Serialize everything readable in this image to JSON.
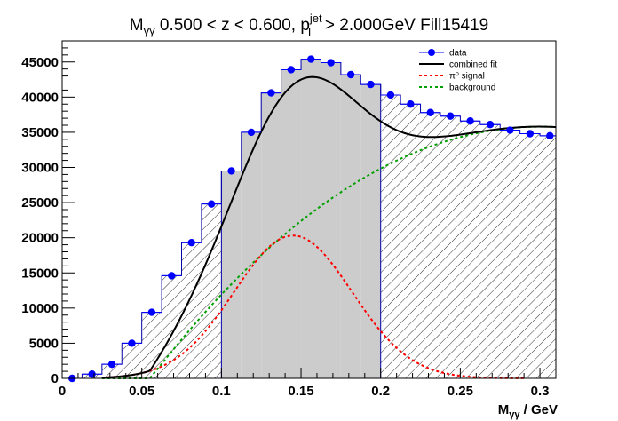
{
  "chart_data": {
    "type": "histogram-fit",
    "title": {
      "parts": [
        "M",
        "γγ",
        " 0.500 < z < 0.600, p",
        "jet",
        "T",
        " > 2.000GeV Fill15419"
      ]
    },
    "xlabel": {
      "main": "M",
      "sub": "γγ",
      "rest": " / GeV"
    },
    "ylabel": "",
    "xlim": [
      0,
      0.31
    ],
    "ylim": [
      0,
      48000
    ],
    "xticks": [
      0,
      0.05,
      0.1,
      0.15,
      0.2,
      0.25,
      0.3
    ],
    "xtick_labels": [
      "0",
      "0.05",
      "0.1",
      "0.15",
      "0.2",
      "0.25",
      "0.3"
    ],
    "yticks": [
      0,
      5000,
      10000,
      15000,
      20000,
      25000,
      30000,
      35000,
      40000,
      45000
    ],
    "ytick_labels": [
      "0",
      "5000",
      "10000",
      "15000",
      "20000",
      "25000",
      "30000",
      "35000",
      "40000",
      "45000"
    ],
    "signal_region": [
      0.1,
      0.2
    ],
    "bin_width": 0.0125,
    "bin_centers": [
      0.00625,
      0.01875,
      0.03125,
      0.04375,
      0.05625,
      0.06875,
      0.08125,
      0.09375,
      0.10625,
      0.11875,
      0.13125,
      0.14375,
      0.15625,
      0.16875,
      0.18125,
      0.19375,
      0.20625,
      0.21875,
      0.23125,
      0.24375,
      0.25625,
      0.26875,
      0.28125,
      0.29375,
      0.30625
    ],
    "data_values": [
      0,
      600,
      2000,
      5000,
      9400,
      14600,
      19300,
      24800,
      29500,
      35000,
      40600,
      43900,
      45400,
      44900,
      43200,
      41800,
      40300,
      39000,
      37800,
      37300,
      36600,
      36100,
      35300,
      34800,
      34500
    ],
    "legend": {
      "position": "top-right",
      "entries": [
        {
          "label": "data",
          "color": "#0000ff",
          "style": "marker"
        },
        {
          "label": "combined fit",
          "color": "#000000",
          "style": "solid"
        },
        {
          "label": "π⁰ signal",
          "color": "#ff0000",
          "style": "dashed"
        },
        {
          "label": "background",
          "color": "#00a000",
          "style": "dashed"
        }
      ]
    },
    "fit_model": {
      "signal": {
        "amplitude": 20300,
        "mean": 0.145,
        "sigma": 0.037
      },
      "background": {
        "amplitude": 35800,
        "peak": 0.3,
        "width": 0.245,
        "onset": 0.025
      }
    },
    "colors": {
      "data": "#0000ff",
      "fit": "#000000",
      "signal": "#ff0000",
      "background": "#00a000",
      "signal_region_fill": "#cccccc",
      "histogram_line": "#0000aa"
    }
  }
}
